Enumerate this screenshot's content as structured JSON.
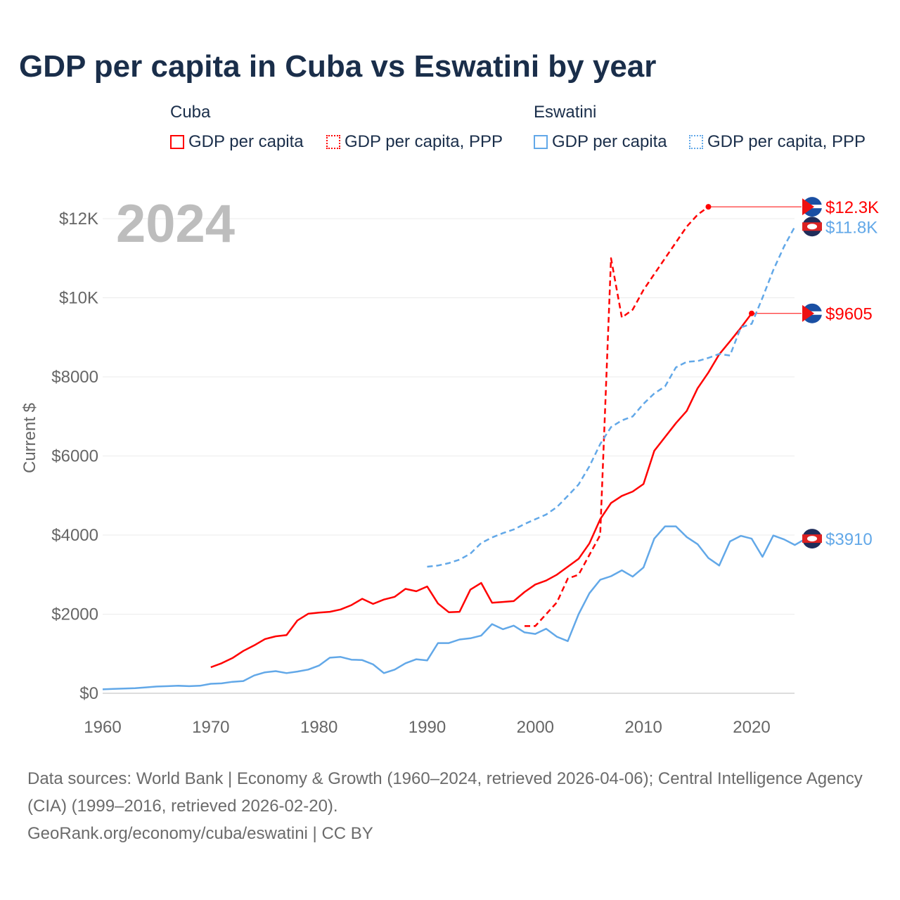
{
  "title": "GDP per capita in Cuba vs Eswatini by year",
  "legend": {
    "groups": [
      {
        "name": "Cuba",
        "items": [
          "GDP per capita",
          "GDP per capita, PPP"
        ]
      },
      {
        "name": "Eswatini",
        "items": [
          "GDP per capita",
          "GDP per capita, PPP"
        ]
      }
    ]
  },
  "year_label": "2024",
  "footer": {
    "line1": "Data sources: World Bank | Economy & Growth (1960–2024, retrieved 2026-04-06); Central Intelligence Agency (CIA) (1999–2016, retrieved 2026-02-20).",
    "line2": "GeoRank.org/economy/cuba/eswatini | CC BY"
  },
  "colors": {
    "cuba": "#ff0000",
    "eswatini": "#62a8e8"
  },
  "chart_data": {
    "type": "line",
    "title": "GDP per capita in Cuba vs Eswatini by year",
    "xlabel": "",
    "ylabel": "Current $",
    "xlim": [
      1960,
      2024
    ],
    "ylim": [
      0,
      12600
    ],
    "x_ticks": [
      1960,
      1970,
      1980,
      1990,
      2000,
      2010,
      2020
    ],
    "x_tick_labels": [
      "1960",
      "1970",
      "1980",
      "1990",
      "2000",
      "2010",
      "2020"
    ],
    "y_ticks": [
      0,
      2000,
      4000,
      6000,
      8000,
      10000,
      12000
    ],
    "y_tick_labels": [
      "$0",
      "$2000",
      "$4000",
      "$6000",
      "$8000",
      "$10K",
      "$12K"
    ],
    "grid": true,
    "series": [
      {
        "name": "Cuba GDP per capita",
        "country": "cuba",
        "dashed": false,
        "start": 1970,
        "end_label": "$9605",
        "values": [
          658,
          760,
          890,
          1070,
          1210,
          1370,
          1440,
          1470,
          1840,
          2010,
          2040,
          2060,
          2120,
          2230,
          2390,
          2260,
          2370,
          2440,
          2640,
          2580,
          2700,
          2270,
          2050,
          2060,
          2620,
          2790,
          2290,
          2310,
          2330,
          2560,
          2750,
          2850,
          3000,
          3200,
          3400,
          3790,
          4400,
          4810,
          4990,
          5100,
          5290,
          6130,
          6480,
          6830,
          7140,
          7710,
          8110,
          8570,
          8900,
          9240,
          9605
        ]
      },
      {
        "name": "Cuba GDP per capita, PPP",
        "country": "cuba",
        "dashed": true,
        "start": 1999,
        "end_label": "$12.3K",
        "values": [
          1700,
          1700,
          2000,
          2300,
          2900,
          3000,
          3500,
          4000,
          11000,
          9500,
          9700,
          10200,
          10600,
          11000,
          11400,
          11800,
          12100,
          12300
        ]
      },
      {
        "name": "Eswatini GDP per capita",
        "country": "eswatini",
        "dashed": false,
        "start": 1960,
        "end_label": "$3910",
        "values": [
          100,
          110,
          120,
          130,
          150,
          170,
          180,
          190,
          180,
          190,
          240,
          250,
          290,
          310,
          450,
          530,
          560,
          510,
          550,
          600,
          700,
          900,
          920,
          850,
          840,
          730,
          510,
          600,
          760,
          860,
          830,
          1270,
          1270,
          1360,
          1390,
          1460,
          1750,
          1620,
          1710,
          1540,
          1500,
          1630,
          1430,
          1320,
          2000,
          2530,
          2870,
          2960,
          3110,
          2950,
          3180,
          3910,
          4220,
          4220,
          3950,
          3770,
          3420,
          3230,
          3840,
          3980,
          3910,
          3450,
          3990,
          3890,
          3750,
          3910
        ]
      },
      {
        "name": "Eswatini GDP per capita, PPP",
        "country": "eswatini",
        "dashed": true,
        "start": 1990,
        "end_label": "$11.8K",
        "values": [
          3200,
          3230,
          3290,
          3380,
          3530,
          3800,
          3940,
          4050,
          4140,
          4280,
          4400,
          4520,
          4710,
          4990,
          5280,
          5740,
          6300,
          6730,
          6900,
          7000,
          7320,
          7580,
          7760,
          8240,
          8380,
          8400,
          8480,
          8580,
          8540,
          9250,
          9340,
          10000,
          10700,
          11300,
          11800
        ]
      }
    ]
  }
}
